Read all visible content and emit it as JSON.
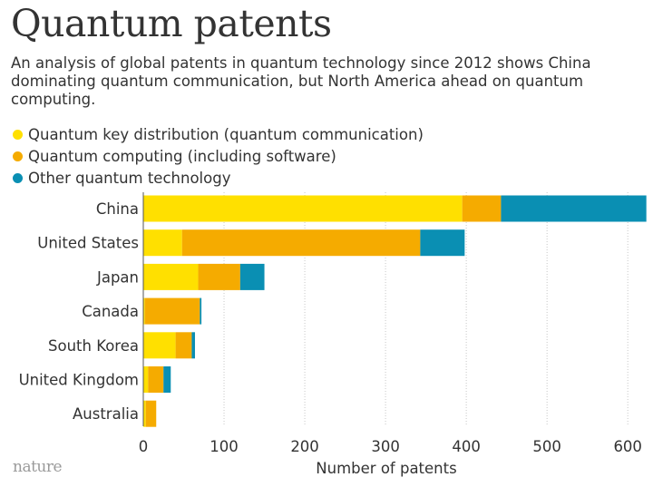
{
  "title": "Quantum patents",
  "subtitle": "An analysis of global patents in quantum technology since 2012 shows China dominating quantum communication, but North America ahead on quantum computing.",
  "logo_text": "nature",
  "colors": {
    "qkd": "#ffe000",
    "computing": "#f5ab00",
    "other": "#0a8fb3",
    "text": "#333333",
    "grid": "#c8c8c8"
  },
  "chart_data": {
    "type": "bar",
    "orientation": "horizontal",
    "stacked": true,
    "categories": [
      "China",
      "United States",
      "Japan",
      "Canada",
      "South Korea",
      "United Kingdom",
      "Australia"
    ],
    "series": [
      {
        "name": "Quantum key distribution (quantum communication)",
        "color": "#ffe000",
        "values": [
          395,
          48,
          68,
          2,
          40,
          6,
          3
        ]
      },
      {
        "name": "Quantum computing (including software)",
        "color": "#f5ab00",
        "values": [
          48,
          295,
          52,
          68,
          20,
          19,
          13
        ]
      },
      {
        "name": "Other quantum technology",
        "color": "#0a8fb3",
        "values": [
          180,
          55,
          30,
          2,
          4,
          9,
          0
        ]
      }
    ],
    "xlabel": "Number of patents",
    "ylabel": "",
    "xlim": [
      0,
      620
    ],
    "xticks": [
      0,
      100,
      200,
      300,
      400,
      500,
      600
    ],
    "grid": true,
    "legend_position": "top-left"
  }
}
